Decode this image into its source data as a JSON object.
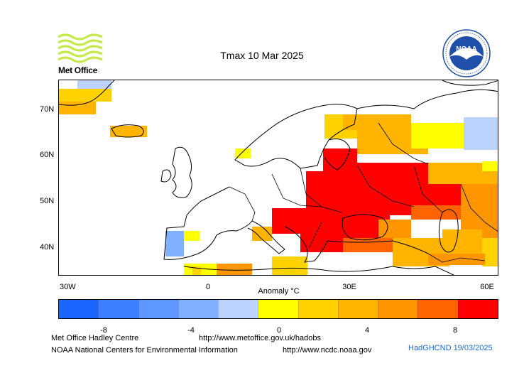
{
  "title": "Tmax 10 Mar 2025",
  "logo_left": {
    "text": "Met Office",
    "icon": "met-office-wave-logo"
  },
  "logo_right": {
    "text": "NOAA",
    "icon": "noaa-seal"
  },
  "map": {
    "lat_labels": [
      "70N",
      "60N",
      "50N",
      "40N"
    ],
    "lon_labels": [
      "30W",
      "0",
      "30E",
      "60E"
    ],
    "units_label": "Anomaly °C"
  },
  "legend": {
    "colors": [
      "#1a66ff",
      "#3d7fff",
      "#5e97ff",
      "#80b0ff",
      "#bcd2ff",
      "#ffff00",
      "#ffd200",
      "#ffb400",
      "#ff9600",
      "#ff6400",
      "#ff0000"
    ],
    "tick_labels": [
      "-8",
      "-4",
      "0",
      "4",
      "8"
    ]
  },
  "footer": {
    "line1_left": "Met Office Hadley Centre",
    "line1_right": "http://www.metoffice.gov.uk/hadobs",
    "line2_left": "NOAA National Centers for Environmental Information",
    "line2_right": "http://www.ncdc.noaa.gov",
    "stamp": "HadGHCND 19/03/2025"
  }
}
